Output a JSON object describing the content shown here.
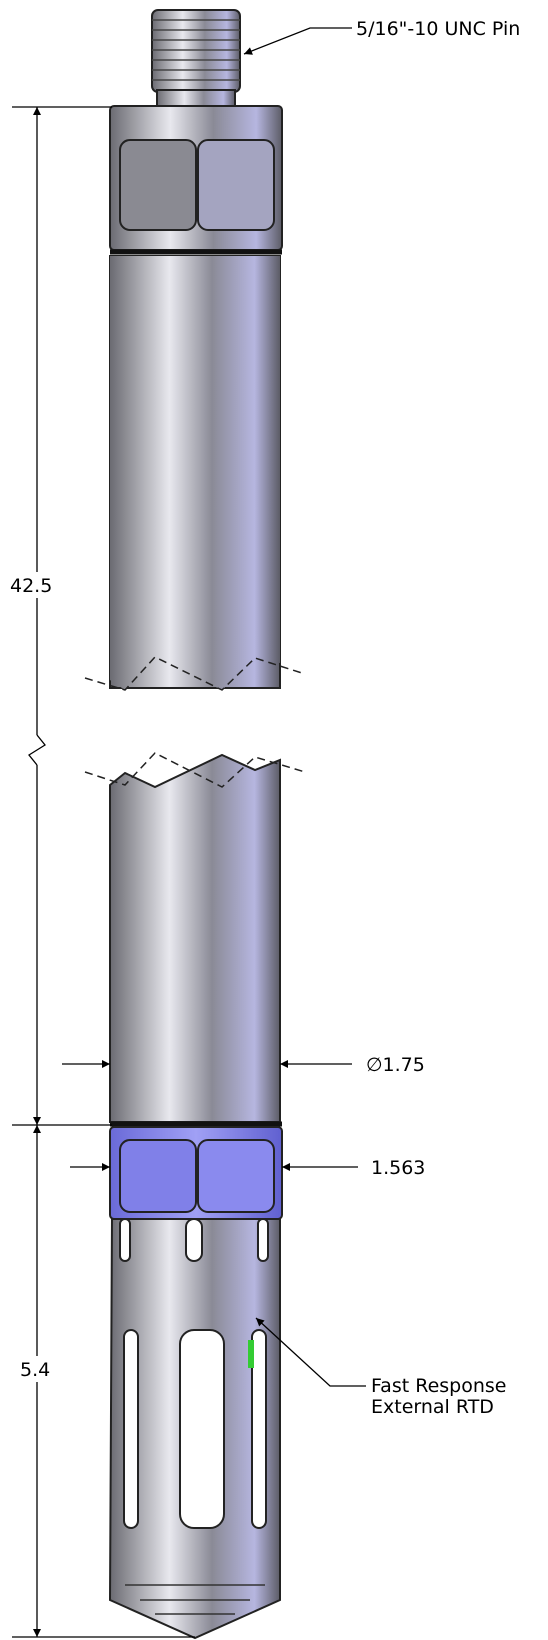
{
  "labels": {
    "pin": "5/16\"-10 UNC Pin",
    "length": "42.5",
    "diameter": "∅1.75",
    "hex": "1.563",
    "tip_length": "5.4",
    "rtd": [
      "Fast Response",
      "External RTD"
    ]
  }
}
